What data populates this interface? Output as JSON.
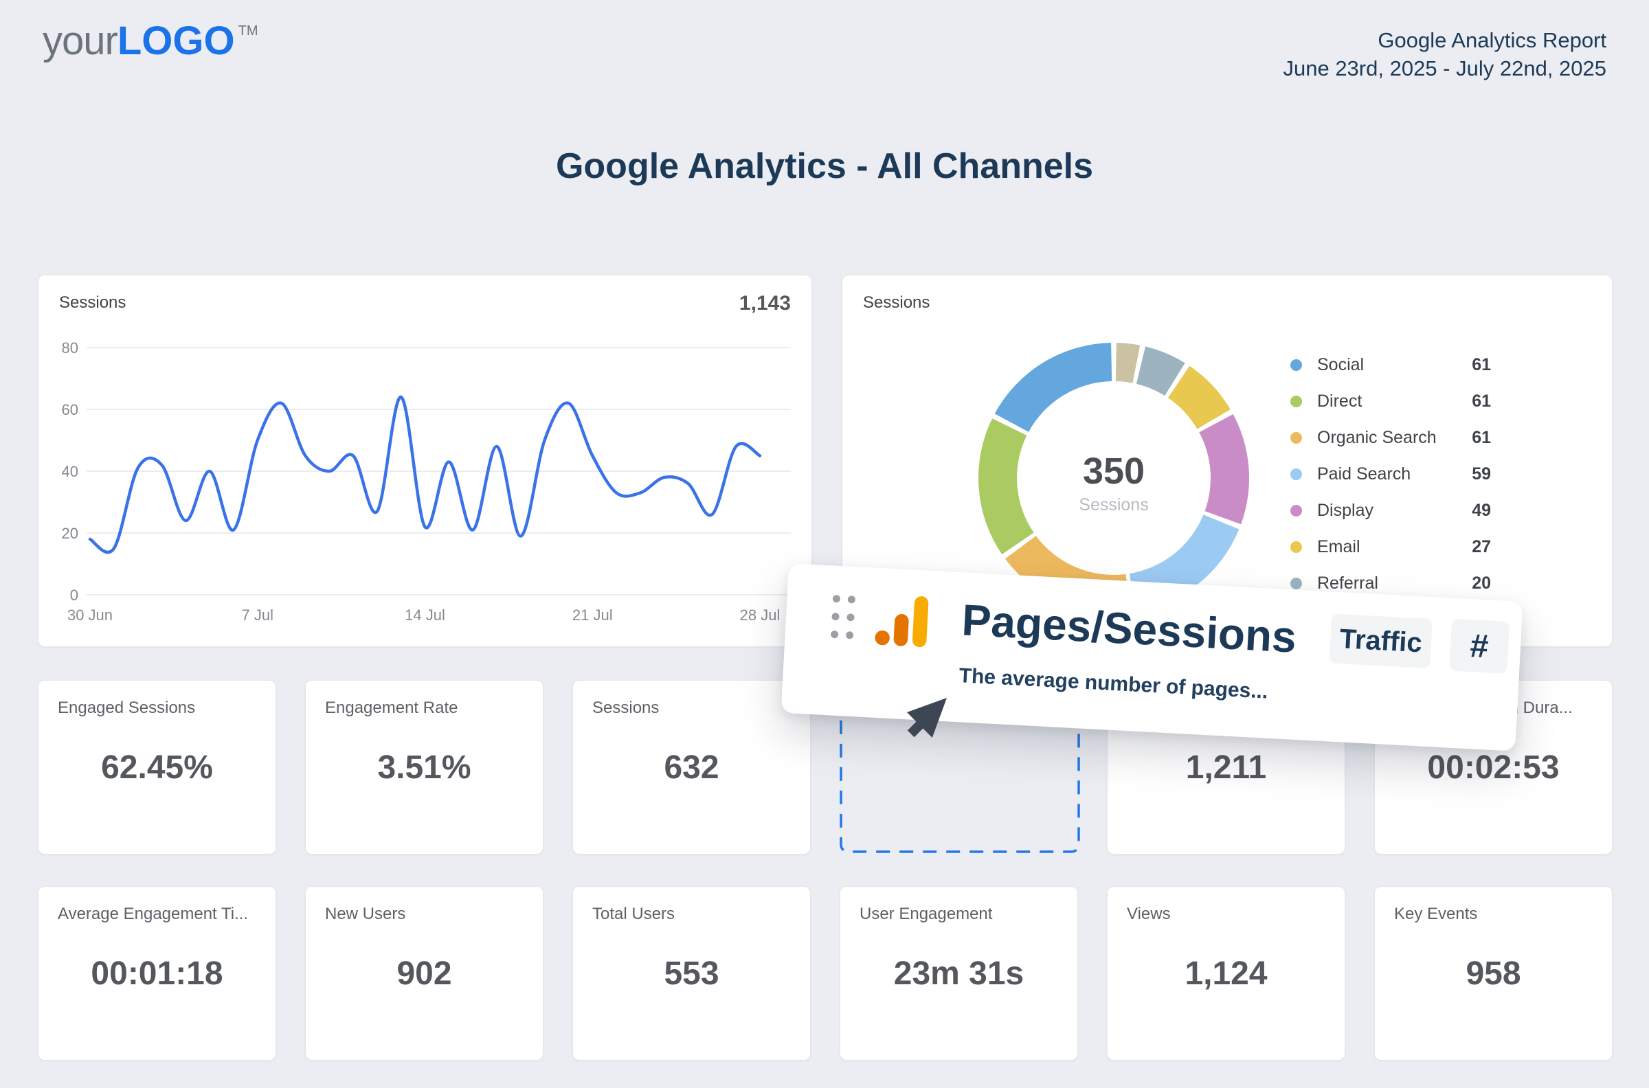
{
  "logo": {
    "prefix": "your",
    "brand": "LOGO",
    "tm": "TM",
    "brand_color": "#1a73e8",
    "prefix_color": "#6b737d"
  },
  "report_header": {
    "title": "Google Analytics Report",
    "date_range": "June 23rd, 2025 - July 22nd, 2025"
  },
  "page_title": "Google Analytics - All Channels",
  "colors": {
    "navy": "#1c3a57",
    "accent_blue": "#1a73e8",
    "line_blue": "#3a72e8",
    "dashed_blue": "#2577e6",
    "card_bg": "#ffffff",
    "page_bg": "#ecedf2"
  },
  "line_chart_card": {
    "title": "Sessions",
    "total": "1,143"
  },
  "donut_card": {
    "title": "Sessions",
    "center_value": "350",
    "center_label": "Sessions"
  },
  "chart_data": [
    {
      "type": "line",
      "title": "Sessions",
      "total_label": "1,143",
      "x_tick_labels": [
        "30 Jun",
        "7 Jul",
        "14 Jul",
        "21 Jul",
        "28 Jul"
      ],
      "x_tick_days": [
        0,
        7,
        14,
        21,
        28
      ],
      "values": [
        18,
        15,
        41,
        42,
        24,
        40,
        21,
        50,
        62,
        45,
        40,
        45,
        27,
        64,
        22,
        43,
        21,
        48,
        19,
        50,
        62,
        45,
        33,
        33,
        38,
        36,
        26,
        48,
        45
      ],
      "ylim": [
        0,
        80
      ],
      "yticks": [
        80,
        60,
        40,
        20,
        0
      ],
      "grid": true,
      "line_color": "#3a72e8",
      "grid_color": "#ebecef",
      "axis_label_color": "#85898f"
    },
    {
      "type": "donut",
      "title": "Sessions",
      "center_value": "350",
      "center_label": "Sessions",
      "legend_position": "right",
      "segments": [
        {
          "label": "Social",
          "value": 61,
          "color": "#64a7de"
        },
        {
          "label": "Direct",
          "value": 61,
          "color": "#a9cb61"
        },
        {
          "label": "Organic Search",
          "value": 61,
          "color": "#edb95e"
        },
        {
          "label": "Paid Search",
          "value": 59,
          "color": "#9bcaf2"
        },
        {
          "label": "Display",
          "value": 49,
          "color": "#c98cc6"
        },
        {
          "label": "Email",
          "value": 27,
          "color": "#e8c84f"
        },
        {
          "label": "Referral",
          "value": 20,
          "color": "#9db3bf"
        },
        {
          "label": "",
          "value": 12,
          "color": "#cbc2a2"
        }
      ]
    }
  ],
  "overlay_card": {
    "title": "Pages/Sessions",
    "description": "The average number of pages...",
    "tag": "Traffic",
    "format_badge": "#"
  },
  "metrics_row1": [
    {
      "label": "Engaged Sessions",
      "value": "62.45%"
    },
    {
      "label": "Engagement Rate",
      "value": "3.51%"
    },
    {
      "label": "Sessions",
      "value": "632"
    },
    {
      "label": "",
      "value": "1,211"
    },
    {
      "label": "Average Session Dura...",
      "value": "00:02:53"
    }
  ],
  "metrics_row2": [
    {
      "label": "Average Engagement Ti...",
      "value": "00:01:18"
    },
    {
      "label": "New Users",
      "value": "902"
    },
    {
      "label": "Total Users",
      "value": "553"
    },
    {
      "label": "User Engagement",
      "value": "23m 31s"
    },
    {
      "label": "Views",
      "value": "1,124"
    },
    {
      "label": "Key Events",
      "value": "958"
    }
  ]
}
